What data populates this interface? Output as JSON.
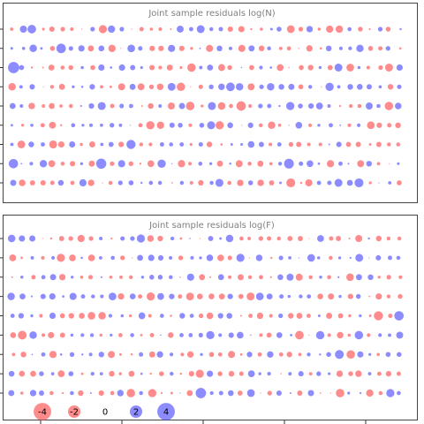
{
  "colors": {
    "negative": "#ff4040",
    "positive": "#4040ff",
    "title": "#808080",
    "frame": "#444444"
  },
  "chart_data": [
    {
      "type": "scatter",
      "title": "Joint sample residuals log(N)",
      "grid": false,
      "rows": 9,
      "columns": 40,
      "encoding": "bubble area ~ |residual|, red = negative, blue = positive",
      "seed": 7
    },
    {
      "type": "scatter",
      "title": "Joint sample residuals log(F)",
      "grid": false,
      "rows": 9,
      "columns": 40,
      "encoding": "bubble area ~ |residual|, red = negative, blue = positive",
      "seed": 19,
      "legend": {
        "position": "bottom-left",
        "items": [
          {
            "label": "-4",
            "value": -4
          },
          {
            "label": "-2",
            "value": -2
          },
          {
            "label": "0",
            "value": 0
          },
          {
            "label": "2",
            "value": 2
          },
          {
            "label": "4",
            "value": 4
          }
        ]
      }
    }
  ]
}
